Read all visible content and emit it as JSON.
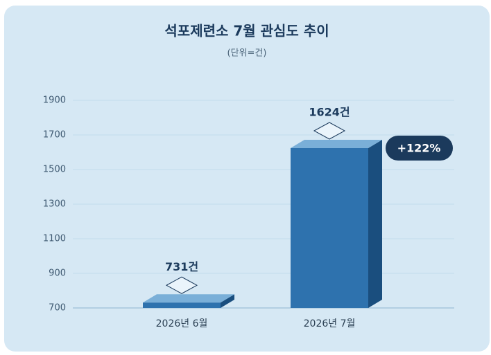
{
  "chart_data": {
    "type": "bar3d",
    "title": "석포제련소 7월 관심도 추이",
    "subtitle": "(단위=건)",
    "categories": [
      "2026년 6월",
      "2026년 7월"
    ],
    "values": [
      731,
      1624
    ],
    "value_labels": [
      "731건",
      "1624건"
    ],
    "color": "#2e72ae",
    "ylim": [
      700,
      1900
    ],
    "yticks": [
      700,
      900,
      1100,
      1300,
      1500,
      1700,
      1900
    ],
    "grid": true,
    "annotation": "+122%"
  }
}
